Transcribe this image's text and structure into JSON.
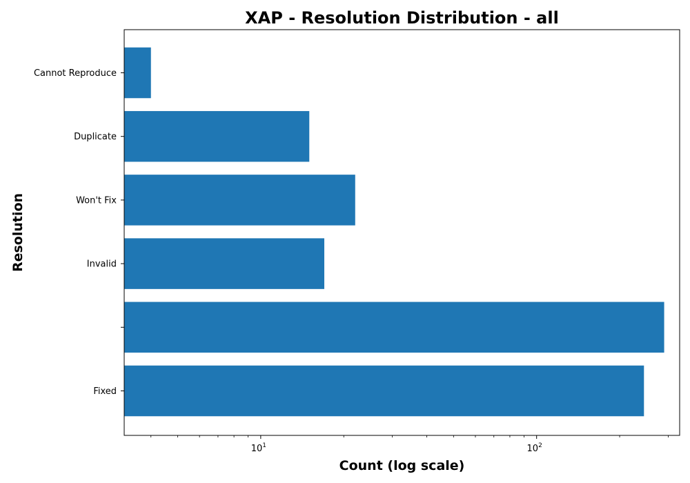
{
  "chart_data": {
    "type": "bar",
    "orientation": "horizontal",
    "title": "XAP - Resolution Distribution - all",
    "xlabel": "Count (log scale)",
    "ylabel": "Resolution",
    "x_scale": "log",
    "xlim": [
      3.2,
      330
    ],
    "x_ticks": [
      {
        "value": 10,
        "base": "10",
        "exp": "1"
      },
      {
        "value": 100,
        "base": "10",
        "exp": "2"
      }
    ],
    "categories": [
      "Cannot Reproduce",
      "Duplicate",
      "Won't Fix",
      "Invalid",
      "",
      "Fixed"
    ],
    "values": [
      4,
      15,
      22,
      17,
      290,
      245
    ],
    "bar_color": "#1f77b4",
    "grid": false,
    "legend": "none"
  }
}
